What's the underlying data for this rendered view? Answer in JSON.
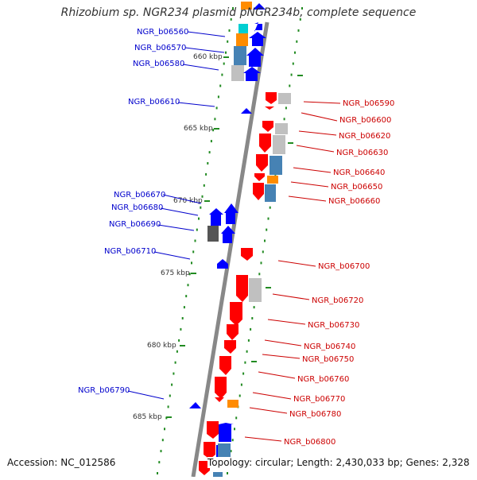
{
  "title": "Rhizobium sp. NGR234 plasmid pNGR234b, complete sequence",
  "footer": {
    "accession": "Accession: NC_012586",
    "summary": "Topology: circular; Length: 2,430,033 bp; Genes: 2,328"
  },
  "colors": {
    "forward_label": "#0000cc",
    "reverse_label": "#cc0000",
    "forward_gene": "#0000ff",
    "reverse_gene": "#ff0000",
    "scale_tick": "#228b22",
    "axis": "#888888",
    "cog_orange": "#ff8c00",
    "cog_steel": "#4682b4",
    "cog_grey": "#c0c0c0",
    "cog_dark": "#555555",
    "cog_cyan": "#00ced1"
  },
  "scale_labels": [
    "660 kbp",
    "665 kbp",
    "670 kbp",
    "675 kbp",
    "680 kbp",
    "685 kbp"
  ],
  "forward_labels": [
    "NGR_b06560",
    "NGR_b06570",
    "NGR_b06580",
    "NGR_b06610",
    "NGR_b06670",
    "NGR_b06680",
    "NGR_b06690",
    "NGR_b06710",
    "NGR_b06790"
  ],
  "reverse_labels": [
    "NGR_b06590",
    "NGR_b06600",
    "NGR_b06620",
    "NGR_b06630",
    "NGR_b06640",
    "NGR_b06650",
    "NGR_b06660",
    "NGR_b06700",
    "NGR_b06720",
    "NGR_b06730",
    "NGR_b06740",
    "NGR_b06750",
    "NGR_b06760",
    "NGR_b06770",
    "NGR_b06780",
    "NGR_b06800"
  ]
}
